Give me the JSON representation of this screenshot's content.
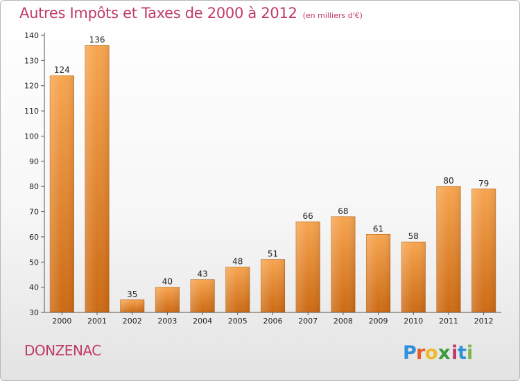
{
  "header": {
    "title": "Autres Impôts et Taxes de 2000 à 2012",
    "subtitle": "(en milliers d'€)"
  },
  "footer": {
    "commune": "DONZENAC",
    "logo_text": "Proxiti"
  },
  "colors": {
    "accent": "#c0396b",
    "bar_top": "#f7a550",
    "bar_bottom": "#cc6a14"
  },
  "chart_data": {
    "type": "bar",
    "title": "Autres Impôts et Taxes de 2000 à 2012",
    "subtitle": "(en milliers d'€)",
    "categories": [
      "2000",
      "2001",
      "2002",
      "2003",
      "2004",
      "2005",
      "2006",
      "2007",
      "2008",
      "2009",
      "2010",
      "2011",
      "2012"
    ],
    "values": [
      124,
      136,
      35,
      40,
      43,
      48,
      51,
      66,
      68,
      61,
      58,
      80,
      79
    ],
    "ylim": [
      30,
      140
    ],
    "yticks": [
      30,
      40,
      50,
      60,
      70,
      80,
      90,
      100,
      110,
      120,
      130,
      140
    ],
    "grid": false,
    "legend": "none"
  }
}
